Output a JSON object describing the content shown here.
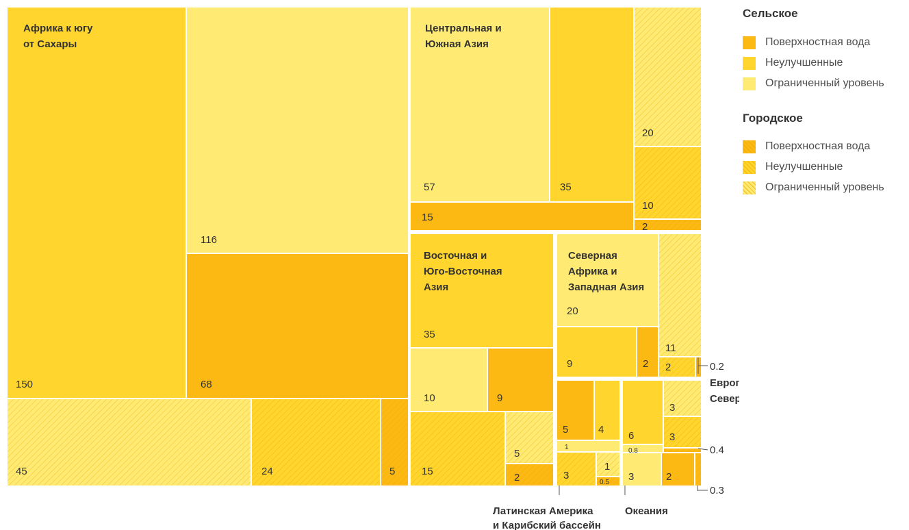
{
  "colors": {
    "surface_water": "#FCB813",
    "unimproved": "#FFD52E",
    "limited": "#FFEB73",
    "hatch_line": "#EDA900"
  },
  "legend": {
    "rural_title": "Сельское",
    "urban_title": "Городское",
    "rural_items": [
      {
        "label": "Поверхностная вода",
        "color_key": "surface_water"
      },
      {
        "label": "Неулучшенные",
        "color_key": "unimproved"
      },
      {
        "label": "Ограниченный уровень",
        "color_key": "limited"
      }
    ],
    "urban_items": [
      {
        "label": "Поверхностная вода",
        "color_key": "surface_water"
      },
      {
        "label": "Неулучшенные",
        "color_key": "unimproved"
      },
      {
        "label": "Ограниченный уровень",
        "color_key": "limited"
      }
    ]
  },
  "chart_data": {
    "type": "treemap",
    "regions": [
      {
        "name": "Африка к югу от Сахары",
        "label_lines": [
          "Африка к югу",
          "от Сахары"
        ],
        "rural": {
          "unimproved": 150,
          "limited": 116,
          "surface_water": 68
        },
        "urban": {
          "limited": 45,
          "unimproved": 24,
          "surface_water": 5
        }
      },
      {
        "name": "Центральная и Южная Азия",
        "label_lines": [
          "Центральная и",
          "Южная Азия"
        ],
        "rural": {
          "limited": 57,
          "unimproved": 35,
          "surface_water": 15
        },
        "urban": {
          "limited": 20,
          "unimproved": 10,
          "surface_water": 2
        }
      },
      {
        "name": "Восточная и Юго-Восточная Азия",
        "label_lines": [
          "Восточная и",
          "Юго-Восточная",
          "Азия"
        ],
        "rural": {
          "unimproved": 35,
          "limited": 10,
          "surface_water": 9
        },
        "urban": {
          "unimproved": 15,
          "limited": 5,
          "surface_water": 2
        }
      },
      {
        "name": "Северная Африка и Западная Азия",
        "label_lines": [
          "Северная",
          "Африка и",
          "Западная Азия"
        ],
        "rural": {
          "limited": 20,
          "unimproved": 9,
          "surface_water": 2
        },
        "urban": {
          "limited": 11,
          "unimproved": 2,
          "surface_water": 0.2
        }
      },
      {
        "name": "Латинская Америка и Карибский бассейн",
        "label_lines": [
          "Латинская Америка",
          "и Карибский бассейн"
        ],
        "rural": {
          "surface_water": 5,
          "unimproved": 4,
          "limited": 1
        },
        "urban": {
          "unimproved": 3,
          "limited": 1,
          "surface_water": 0.5
        }
      },
      {
        "name": "Океания",
        "label_lines": [
          "Океания"
        ],
        "rural": {
          "unimproved": 6,
          "limited": 0.8,
          "surface_water": 2
        },
        "urban": {
          "limited": 3,
          "unimproved": 3,
          "surface_water": 0.4
        }
      },
      {
        "name": "Европа и Северная Америка",
        "label_lines": [
          "Европа и",
          "Северная Америка"
        ],
        "rural": {
          "limited": 3
        },
        "urban": {
          "surface_water": 0.3
        }
      }
    ],
    "callouts": [
      "0.2",
      "0.4",
      "0.3"
    ]
  }
}
